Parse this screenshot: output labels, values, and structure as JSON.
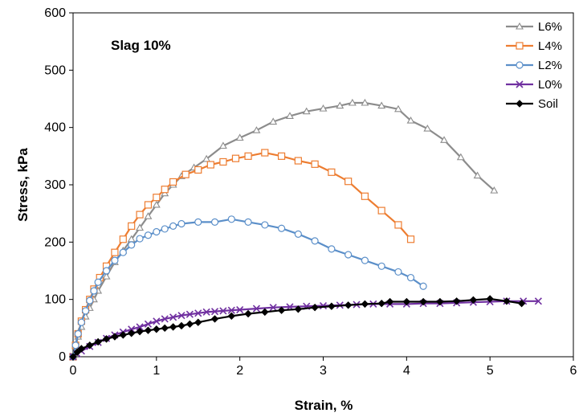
{
  "chart_data": {
    "type": "line",
    "title": "",
    "annotation": "Slag 10%",
    "xlabel": "Strain, %",
    "ylabel": "Stress, kPa",
    "xlim": [
      0,
      6
    ],
    "ylim": [
      0,
      600
    ],
    "x_ticks": [
      0,
      1,
      2,
      3,
      4,
      5,
      6
    ],
    "y_ticks": [
      0,
      100,
      200,
      300,
      400,
      500,
      600
    ],
    "grid": false,
    "legend_position": "top-right",
    "series": [
      {
        "name": "L6%",
        "color": "#8c8c8c",
        "marker": "triangle",
        "x": [
          0,
          0.03,
          0.06,
          0.1,
          0.15,
          0.2,
          0.25,
          0.3,
          0.4,
          0.5,
          0.6,
          0.7,
          0.8,
          0.9,
          1.0,
          1.1,
          1.2,
          1.3,
          1.45,
          1.6,
          1.8,
          2.0,
          2.2,
          2.4,
          2.6,
          2.8,
          3.0,
          3.2,
          3.35,
          3.5,
          3.7,
          3.9,
          4.05,
          4.25,
          4.45,
          4.65,
          4.85,
          5.05
        ],
        "y": [
          0,
          18,
          35,
          52,
          70,
          85,
          100,
          115,
          140,
          165,
          185,
          205,
          225,
          245,
          265,
          285,
          300,
          315,
          330,
          345,
          368,
          382,
          395,
          410,
          420,
          428,
          433,
          438,
          443,
          443,
          438,
          432,
          412,
          398,
          378,
          348,
          316,
          290
        ]
      },
      {
        "name": "L4%",
        "color": "#ed7d31",
        "marker": "square",
        "x": [
          0,
          0.03,
          0.06,
          0.1,
          0.15,
          0.2,
          0.25,
          0.32,
          0.4,
          0.5,
          0.6,
          0.7,
          0.8,
          0.9,
          1.0,
          1.1,
          1.2,
          1.35,
          1.5,
          1.65,
          1.8,
          1.95,
          2.1,
          2.3,
          2.5,
          2.7,
          2.9,
          3.1,
          3.3,
          3.5,
          3.7,
          3.9,
          4.05
        ],
        "y": [
          0,
          20,
          40,
          62,
          82,
          100,
          118,
          138,
          158,
          182,
          205,
          228,
          248,
          265,
          278,
          292,
          305,
          318,
          326,
          335,
          340,
          346,
          350,
          356,
          350,
          342,
          336,
          322,
          306,
          280,
          255,
          230,
          205
        ]
      },
      {
        "name": "L2%",
        "color": "#5b8fc9",
        "marker": "circle",
        "x": [
          0,
          0.03,
          0.06,
          0.1,
          0.15,
          0.2,
          0.25,
          0.3,
          0.4,
          0.5,
          0.6,
          0.7,
          0.8,
          0.9,
          1.0,
          1.1,
          1.2,
          1.3,
          1.5,
          1.7,
          1.9,
          2.1,
          2.3,
          2.5,
          2.7,
          2.9,
          3.1,
          3.3,
          3.5,
          3.7,
          3.9,
          4.05,
          4.2
        ],
        "y": [
          0,
          20,
          40,
          60,
          80,
          98,
          115,
          130,
          150,
          168,
          182,
          195,
          206,
          212,
          218,
          223,
          228,
          232,
          235,
          235,
          240,
          235,
          230,
          224,
          214,
          202,
          188,
          178,
          168,
          158,
          148,
          138,
          123
        ]
      },
      {
        "name": "L0%",
        "color": "#7030a0",
        "marker": "x",
        "x": [
          0,
          0.05,
          0.1,
          0.2,
          0.3,
          0.4,
          0.5,
          0.6,
          0.7,
          0.8,
          0.9,
          1.0,
          1.1,
          1.2,
          1.3,
          1.4,
          1.5,
          1.6,
          1.7,
          1.8,
          1.9,
          2.0,
          2.2,
          2.4,
          2.6,
          2.8,
          3.0,
          3.2,
          3.4,
          3.6,
          3.8,
          4.0,
          4.2,
          4.4,
          4.6,
          4.8,
          5.0,
          5.2,
          5.4,
          5.58
        ],
        "y": [
          0,
          5,
          10,
          18,
          25,
          32,
          38,
          43,
          48,
          52,
          57,
          62,
          66,
          69,
          72,
          74,
          76,
          78,
          79,
          80,
          81,
          82,
          84,
          86,
          87,
          88,
          89,
          90,
          91,
          92,
          92,
          92,
          93,
          93,
          94,
          95,
          96,
          97,
          97,
          97
        ]
      },
      {
        "name": "Soil",
        "color": "#000000",
        "marker": "diamond",
        "x": [
          0,
          0.05,
          0.1,
          0.2,
          0.3,
          0.4,
          0.5,
          0.6,
          0.7,
          0.8,
          0.9,
          1.0,
          1.1,
          1.2,
          1.3,
          1.4,
          1.5,
          1.7,
          1.9,
          2.1,
          2.3,
          2.5,
          2.7,
          2.9,
          3.1,
          3.3,
          3.5,
          3.7,
          3.8,
          4.0,
          4.2,
          4.4,
          4.6,
          4.8,
          5.0,
          5.2,
          5.38
        ],
        "y": [
          0,
          8,
          14,
          20,
          26,
          31,
          35,
          38,
          41,
          44,
          46,
          48,
          50,
          52,
          54,
          57,
          60,
          66,
          71,
          75,
          78,
          81,
          83,
          86,
          88,
          90,
          92,
          93,
          96,
          96,
          96,
          96,
          97,
          99,
          101,
          97,
          93
        ]
      }
    ]
  }
}
